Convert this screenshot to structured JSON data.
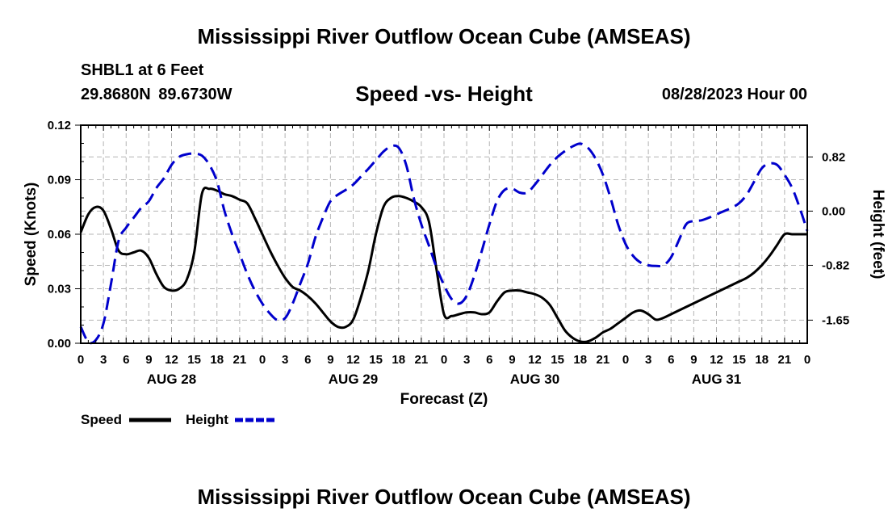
{
  "header": {
    "title": "Mississippi River Outflow Ocean Cube (AMSEAS)",
    "station": "SHBL1 at 6 Feet",
    "coordinates": "29.8680N 89.6730W",
    "subtitle": "Speed -vs- Height",
    "date_stamp": "08/28/2023 Hour 00"
  },
  "footer": {
    "title": "Mississippi River Outflow Ocean Cube (AMSEAS)"
  },
  "chart_data": {
    "type": "line",
    "title": "Speed -vs- Height",
    "xlabel": "Forecast (Z)",
    "ylabel": "Speed (Knots)",
    "y2label": "Height (feet)",
    "xlim": [
      0,
      96
    ],
    "ylim": [
      0,
      0.12
    ],
    "y2lim": [
      -2.0,
      1.3
    ],
    "grid": true,
    "x_ticks": [
      0,
      3,
      6,
      9,
      12,
      15,
      18,
      21,
      24,
      27,
      30,
      33,
      36,
      39,
      42,
      45,
      48,
      51,
      54,
      57,
      60,
      63,
      66,
      69,
      72,
      75,
      78,
      81,
      84,
      87,
      90,
      93,
      96
    ],
    "x_tick_labels": [
      "0",
      "3",
      "6",
      "9",
      "12",
      "15",
      "18",
      "21",
      "0",
      "3",
      "6",
      "9",
      "12",
      "15",
      "18",
      "21",
      "0",
      "3",
      "6",
      "9",
      "12",
      "15",
      "18",
      "21",
      "0",
      "3",
      "6",
      "9",
      "12",
      "15",
      "18",
      "21",
      "0"
    ],
    "y_ticks": [
      "0.00",
      "0.03",
      "0.06",
      "0.09",
      "0.12"
    ],
    "y2_ticks": [
      "-1.65",
      "-0.82",
      "0.00",
      "0.82"
    ],
    "day_labels": [
      {
        "x": 12,
        "label": "AUG 28"
      },
      {
        "x": 36,
        "label": "AUG 29"
      },
      {
        "x": 60,
        "label": "AUG 30"
      },
      {
        "x": 84,
        "label": "AUG 31"
      }
    ],
    "legend_position": "bottom-left",
    "series": [
      {
        "name": "Speed",
        "axis": "left",
        "color": "#000000",
        "dash": "solid",
        "x": [
          0,
          1,
          2,
          3,
          4,
          5,
          6,
          7,
          8,
          9,
          10,
          11,
          12,
          13,
          14,
          15,
          16,
          17,
          18,
          19,
          20,
          21,
          22,
          23,
          24,
          25,
          26,
          27,
          28,
          29,
          30,
          31,
          32,
          33,
          34,
          35,
          36,
          37,
          38,
          39,
          40,
          41,
          42,
          43,
          44,
          45,
          46,
          47,
          48,
          49,
          50,
          51,
          52,
          53,
          54,
          55,
          56,
          57,
          58,
          59,
          60,
          61,
          62,
          63,
          64,
          65,
          66,
          67,
          68,
          69,
          70,
          71,
          72,
          73,
          74,
          75,
          76,
          77,
          78,
          79,
          80,
          81,
          82,
          83,
          84,
          85,
          86,
          87,
          88,
          89,
          90,
          91,
          92,
          93,
          94,
          95,
          96
        ],
        "values": [
          0.061,
          0.071,
          0.075,
          0.073,
          0.063,
          0.051,
          0.049,
          0.05,
          0.051,
          0.047,
          0.038,
          0.031,
          0.029,
          0.03,
          0.035,
          0.05,
          0.082,
          0.085,
          0.084,
          0.082,
          0.081,
          0.079,
          0.077,
          0.069,
          0.06,
          0.051,
          0.043,
          0.036,
          0.031,
          0.029,
          0.026,
          0.022,
          0.017,
          0.012,
          0.009,
          0.009,
          0.013,
          0.025,
          0.04,
          0.06,
          0.075,
          0.08,
          0.081,
          0.08,
          0.078,
          0.075,
          0.067,
          0.041,
          0.016,
          0.015,
          0.016,
          0.017,
          0.017,
          0.016,
          0.017,
          0.023,
          0.028,
          0.029,
          0.029,
          0.028,
          0.027,
          0.025,
          0.021,
          0.014,
          0.007,
          0.003,
          0.001,
          0.001,
          0.003,
          0.006,
          0.008,
          0.011,
          0.014,
          0.017,
          0.018,
          0.016,
          0.013,
          0.014,
          0.016,
          0.018,
          0.02,
          0.022,
          0.024,
          0.026,
          0.028,
          0.03,
          0.032,
          0.034,
          0.036,
          0.039,
          0.043,
          0.048,
          0.054,
          0.06,
          0.06,
          0.06,
          0.06
        ]
      },
      {
        "name": "Height",
        "axis": "right",
        "color": "#0000cc",
        "dash": "dashed",
        "x": [
          0,
          1,
          2,
          3,
          4,
          5,
          6,
          7,
          8,
          9,
          10,
          11,
          12,
          13,
          14,
          15,
          16,
          17,
          18,
          19,
          20,
          21,
          22,
          23,
          24,
          25,
          26,
          27,
          28,
          29,
          30,
          31,
          32,
          33,
          34,
          35,
          36,
          37,
          38,
          39,
          40,
          41,
          42,
          43,
          44,
          45,
          46,
          47,
          48,
          49,
          50,
          51,
          52,
          53,
          54,
          55,
          56,
          57,
          58,
          59,
          60,
          61,
          62,
          63,
          64,
          65,
          66,
          67,
          68,
          69,
          70,
          71,
          72,
          73,
          74,
          75,
          76,
          77,
          78,
          79,
          80,
          81,
          82,
          83,
          84,
          85,
          86,
          87,
          88,
          89,
          90,
          91,
          92,
          93,
          94,
          95,
          96
        ],
        "values": [
          -1.75,
          -1.98,
          -1.95,
          -1.7,
          -1.1,
          -0.45,
          -0.25,
          -0.1,
          0.05,
          0.15,
          0.35,
          0.5,
          0.7,
          0.82,
          0.86,
          0.87,
          0.84,
          0.7,
          0.45,
          0.0,
          -0.35,
          -0.65,
          -0.95,
          -1.2,
          -1.4,
          -1.55,
          -1.65,
          -1.62,
          -1.4,
          -1.1,
          -0.8,
          -0.4,
          -0.1,
          0.15,
          0.25,
          0.32,
          0.4,
          0.52,
          0.64,
          0.77,
          0.9,
          0.98,
          0.96,
          0.7,
          0.2,
          -0.2,
          -0.52,
          -0.85,
          -1.12,
          -1.33,
          -1.4,
          -1.28,
          -0.98,
          -0.6,
          -0.2,
          0.15,
          0.32,
          0.34,
          0.28,
          0.28,
          0.4,
          0.55,
          0.7,
          0.82,
          0.91,
          0.98,
          1.02,
          0.96,
          0.8,
          0.55,
          0.2,
          -0.2,
          -0.5,
          -0.68,
          -0.78,
          -0.82,
          -0.83,
          -0.82,
          -0.7,
          -0.45,
          -0.2,
          -0.15,
          -0.14,
          -0.1,
          -0.05,
          0.0,
          0.05,
          0.12,
          0.25,
          0.45,
          0.65,
          0.72,
          0.7,
          0.55,
          0.35,
          0.05,
          -0.3
        ]
      }
    ]
  }
}
